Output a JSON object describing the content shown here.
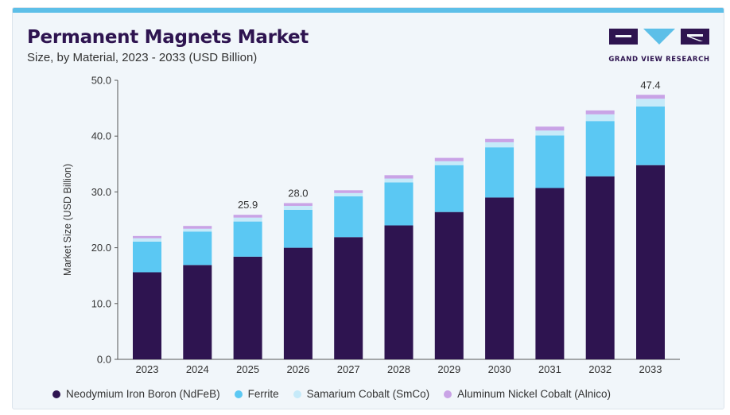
{
  "header": {
    "title": "Permanent Magnets Market",
    "subtitle": "Size, by Material, 2023 - 2033 (USD Billion)"
  },
  "logo": {
    "text": "GRAND VIEW RESEARCH",
    "colors": [
      "#2e1450",
      "#5dbfe8"
    ]
  },
  "chart_data": {
    "type": "bar",
    "stacked": true,
    "title": "Permanent Magnets Market",
    "subtitle": "Size, by Material, 2023 - 2033 (USD Billion)",
    "xlabel": "",
    "ylabel": "Market Size (USD Billion)",
    "ylim": [
      0,
      50
    ],
    "yticks": [
      "0.0",
      "10.0",
      "20.0",
      "30.0",
      "40.0",
      "50.0"
    ],
    "grid": false,
    "legend_position": "bottom",
    "categories": [
      "2023",
      "2024",
      "2025",
      "2026",
      "2027",
      "2028",
      "2029",
      "2030",
      "2031",
      "2032",
      "2033"
    ],
    "series": [
      {
        "name": "Neodymium Iron Boron (NdFeB)",
        "color": "#2e1450",
        "values": [
          15.6,
          16.9,
          18.4,
          20.0,
          21.9,
          24.0,
          26.4,
          29.0,
          30.7,
          32.8,
          34.8
        ]
      },
      {
        "name": "Ferrite",
        "color": "#5bc8f3",
        "values": [
          5.5,
          6.0,
          6.3,
          6.8,
          7.3,
          7.7,
          8.4,
          9.0,
          9.4,
          9.9,
          10.5
        ]
      },
      {
        "name": "Samarium Cobalt (SmCo)",
        "color": "#c6eaf9",
        "values": [
          0.6,
          0.5,
          0.7,
          0.7,
          0.6,
          0.7,
          0.7,
          0.9,
          0.9,
          1.2,
          1.4
        ]
      },
      {
        "name": "Aluminum Nickel Cobalt (Alnico)",
        "color": "#c9a3e6",
        "values": [
          0.4,
          0.5,
          0.5,
          0.5,
          0.5,
          0.6,
          0.6,
          0.6,
          0.7,
          0.7,
          0.7
        ]
      }
    ],
    "annotations": [
      {
        "category": "2025",
        "text": "25.9"
      },
      {
        "category": "2026",
        "text": "28.0"
      },
      {
        "category": "2033",
        "text": "47.4"
      }
    ]
  }
}
